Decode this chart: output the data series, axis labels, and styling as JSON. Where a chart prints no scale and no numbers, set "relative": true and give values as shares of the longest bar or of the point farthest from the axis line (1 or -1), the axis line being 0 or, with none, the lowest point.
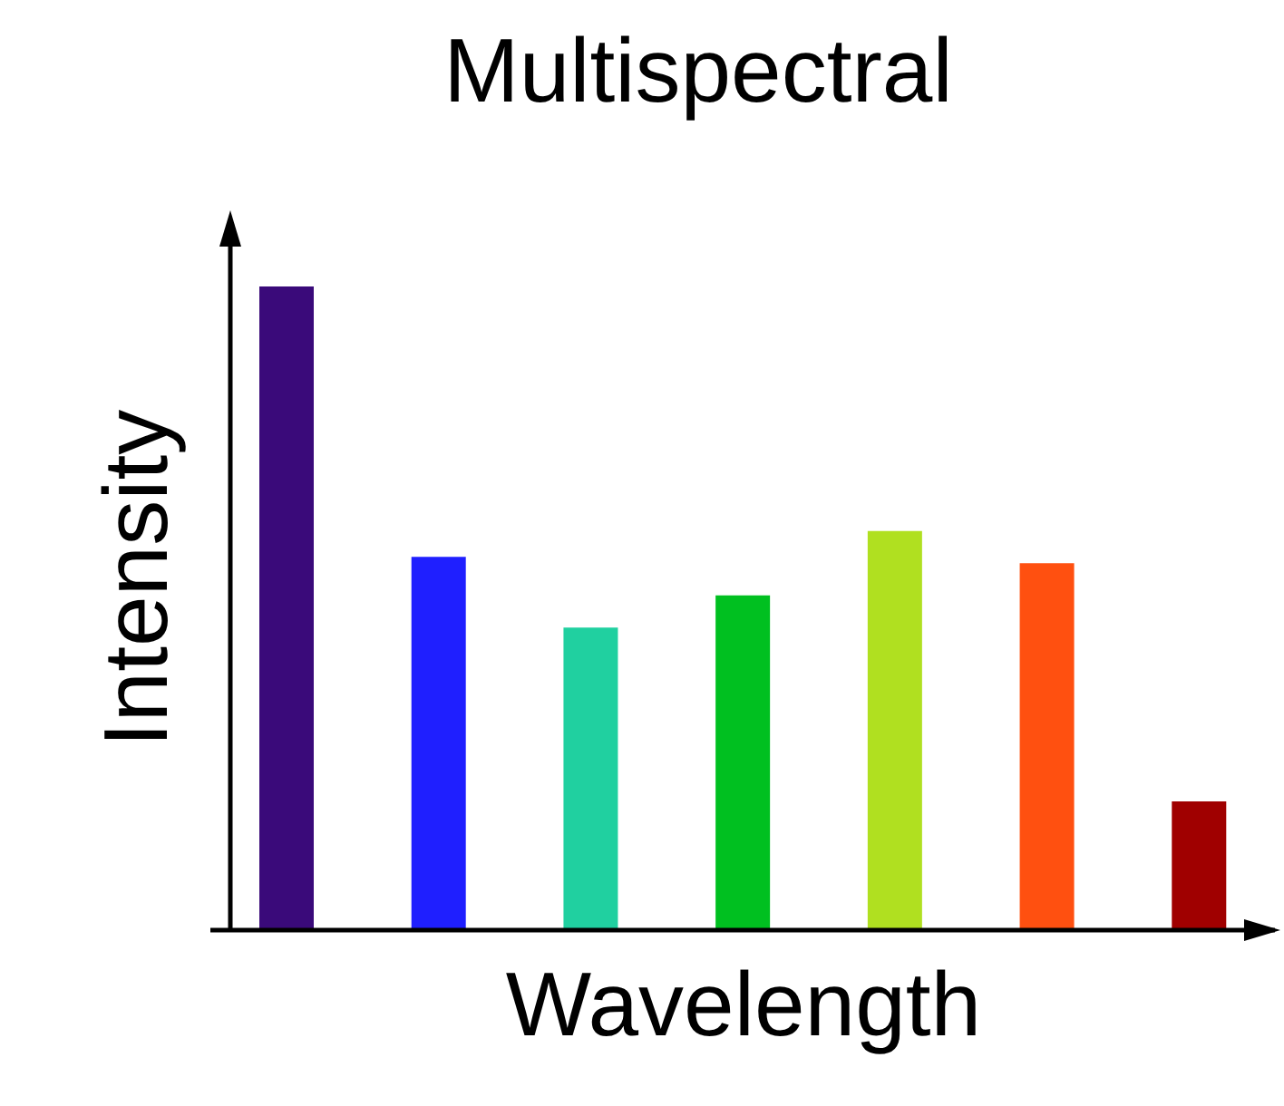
{
  "chart_data": {
    "type": "bar",
    "title": "Multispectral",
    "xlabel": "Wavelength",
    "ylabel": "Intensity",
    "relative": true,
    "categories": [
      null,
      null,
      null,
      null,
      null,
      null,
      null
    ],
    "values": [
      1,
      0.58,
      0.47,
      0.52,
      0.62,
      0.57,
      0.2
    ],
    "colors": [
      "#3a0a7a",
      "#1f1fff",
      "#20d0a0",
      "#00c020",
      "#b0e020",
      "#ff5010",
      "#a00000"
    ],
    "grid": false,
    "legend": false
  }
}
